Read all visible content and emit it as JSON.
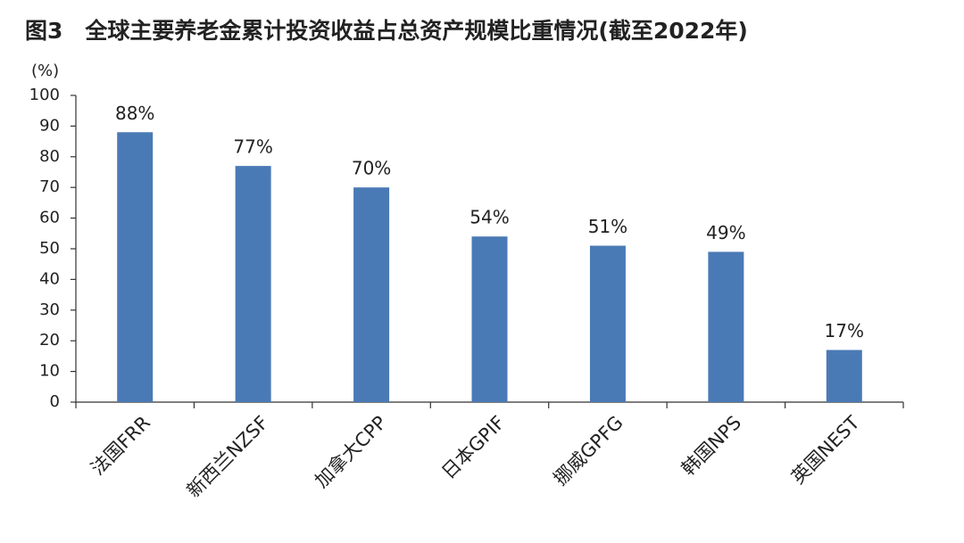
{
  "chart_data": {
    "type": "bar",
    "title": "图3　全球主要养老金累计投资收益占总资产规模比重情况(截至2022年)",
    "y_label": "(%)",
    "categories": [
      "法国FRR",
      "新西兰NZSF",
      "加拿大CPP",
      "日本GPIF",
      "挪威GPFG",
      "韩国NPS",
      "英国NEST"
    ],
    "values": [
      88,
      77,
      70,
      54,
      51,
      49,
      17
    ],
    "value_labels": [
      "88%",
      "77%",
      "70%",
      "54%",
      "51%",
      "49%",
      "17%"
    ],
    "color": "#4a7ab5",
    "ylim": [
      0,
      100
    ],
    "yticks": [
      0,
      10,
      20,
      30,
      40,
      50,
      60,
      70,
      80,
      90,
      100
    ],
    "grid": false
  }
}
